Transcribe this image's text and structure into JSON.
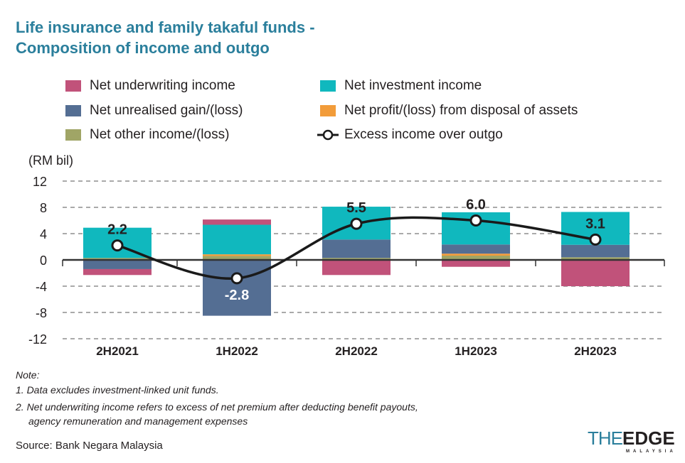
{
  "title_lines": [
    "Life insurance and family takaful funds -",
    "Composition of income and outgo"
  ],
  "unit_label": "(RM bil)",
  "notes": [
    "Note:",
    "1. Data excludes investment-linked unit funds.",
    "2. Net underwriting income refers to excess of net premium after deducting benefit payouts,",
    "agency remuneration and management expenses"
  ],
  "source": "Source: Bank Negara Malaysia",
  "logo": {
    "the": "THE",
    "edge": "EDGE",
    "sub": "MALAYSIA"
  },
  "colors": {
    "underwriting": "#c1527a",
    "investment": "#10b8be",
    "unrealised": "#546e93",
    "disposal": "#f29c3a",
    "other": "#a0a566",
    "line": "#1a1a1a",
    "title": "#2b7f9c"
  },
  "legend": [
    {
      "label": "Net underwriting income",
      "key": "underwriting"
    },
    {
      "label": "Net investment income",
      "key": "investment"
    },
    {
      "label": "Net unrealised gain/(loss)",
      "key": "unrealised"
    },
    {
      "label": "Net profit/(loss) from disposal of assets",
      "key": "disposal"
    },
    {
      "label": "Net other income/(loss)",
      "key": "other"
    },
    {
      "label": "Excess income over outgo",
      "key": "line"
    }
  ],
  "chart_data": {
    "type": "bar",
    "stacked": true,
    "categories": [
      "2H2021",
      "1H2022",
      "2H2022",
      "1H2023",
      "2H2023"
    ],
    "ylim": [
      -12,
      12
    ],
    "yticks": [
      12,
      8,
      4,
      0,
      -4,
      -8,
      -12
    ],
    "grid": true,
    "legend_position": "top",
    "series": [
      {
        "name": "Net other income/(loss)",
        "key": "other",
        "values": [
          0.3,
          0.6,
          0.3,
          0.65,
          0.4
        ]
      },
      {
        "name": "Net profit/(loss) from disposal of assets",
        "key": "disposal",
        "values": [
          0,
          0.25,
          0,
          0.3,
          0
        ]
      },
      {
        "name": "Net unrealised gain/(loss)",
        "key": "unrealised",
        "values": [
          -1.4,
          -8.5,
          2.8,
          1.4,
          1.9
        ]
      },
      {
        "name": "Net investment income",
        "key": "investment",
        "values": [
          4.6,
          4.5,
          5.0,
          4.9,
          5.0
        ]
      },
      {
        "name": "Net underwriting income",
        "key": "underwriting",
        "values": [
          -0.9,
          0.8,
          -2.3,
          -1.05,
          -4.0
        ]
      }
    ],
    "line": {
      "name": "Excess income over outgo",
      "values": [
        2.2,
        -2.8,
        5.5,
        6.0,
        3.1
      ],
      "labels": [
        "2.2",
        "-2.8",
        "5.5",
        "6.0",
        "3.1"
      ]
    }
  }
}
